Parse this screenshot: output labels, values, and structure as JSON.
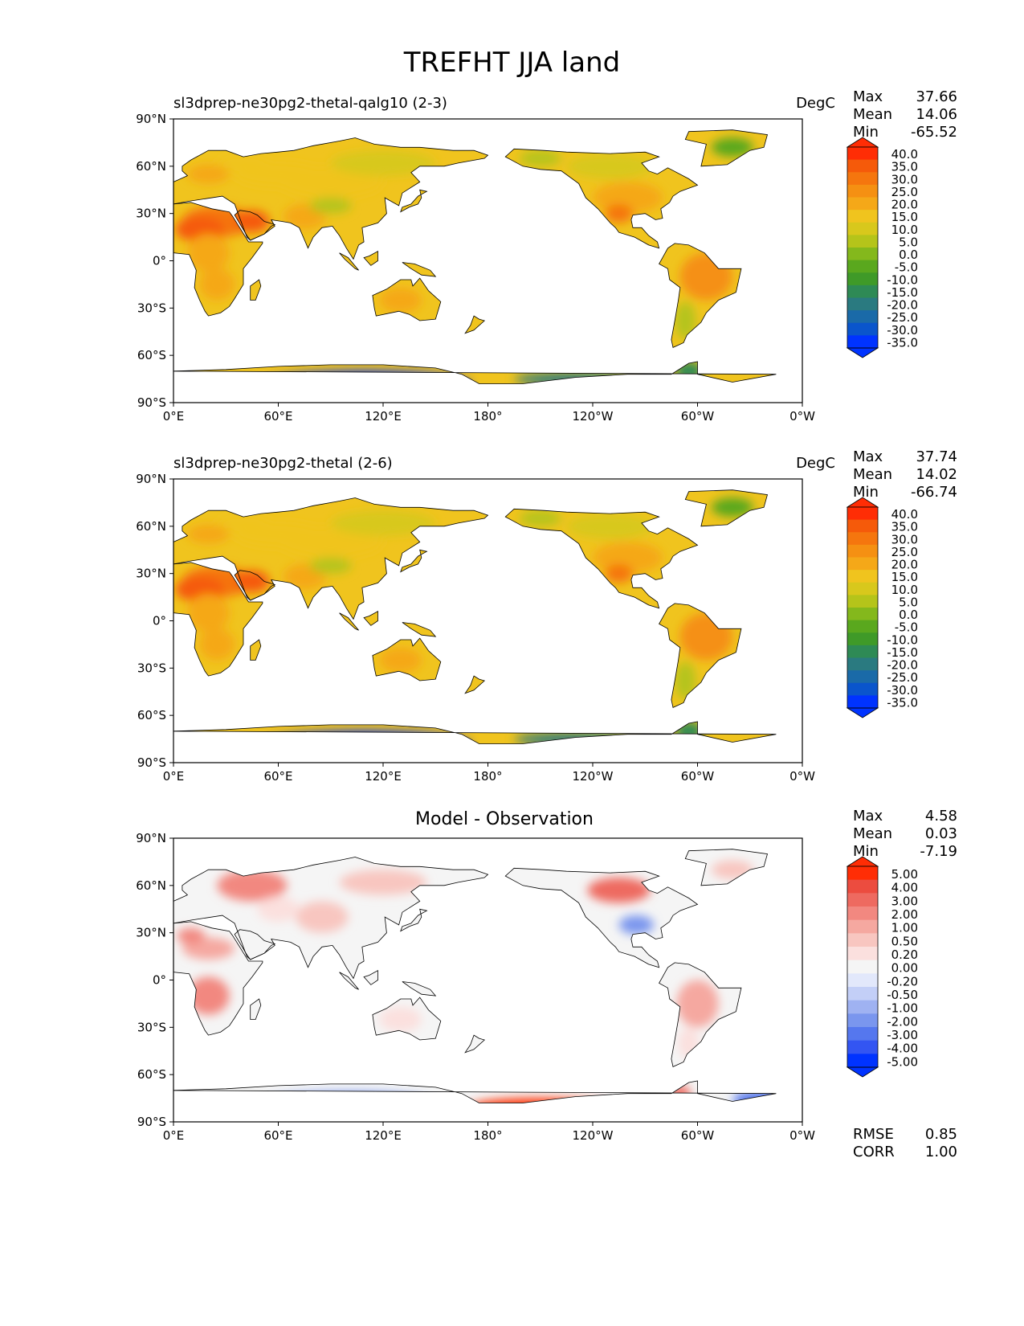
{
  "suptitle": "TREFHT JJA land",
  "panels": [
    {
      "left_title": "sl3dprep-ne30pg2-thetal-qalg10 (2-3)",
      "right_title": "DegC",
      "center_title": "",
      "stats": {
        "max_label": "Max",
        "max": "37.66",
        "mean_label": "Mean",
        "mean": "14.06",
        "min_label": "Min",
        "min": "-65.52"
      },
      "colorbar": [
        "40.0",
        "35.0",
        "30.0",
        "25.0",
        "20.0",
        "15.0",
        "10.0",
        "5.0",
        "0.0",
        "-5.0",
        "-10.0",
        "-15.0",
        "-20.0",
        "-25.0",
        "-30.0",
        "-35.0"
      ]
    },
    {
      "left_title": "sl3dprep-ne30pg2-thetal (2-6)",
      "right_title": "DegC",
      "center_title": "",
      "stats": {
        "max_label": "Max",
        "max": "37.74",
        "mean_label": "Mean",
        "mean": "14.02",
        "min_label": "Min",
        "min": "-66.74"
      },
      "colorbar": [
        "40.0",
        "35.0",
        "30.0",
        "25.0",
        "20.0",
        "15.0",
        "10.0",
        "5.0",
        "0.0",
        "-5.0",
        "-10.0",
        "-15.0",
        "-20.0",
        "-25.0",
        "-30.0",
        "-35.0"
      ]
    },
    {
      "left_title": "",
      "right_title": "",
      "center_title": "Model - Observation",
      "stats": {
        "max_label": "Max",
        "max": "4.58",
        "mean_label": "Mean",
        "mean": "0.03",
        "min_label": "Min",
        "min": "-7.19"
      },
      "colorbar": [
        "5.00",
        "4.00",
        "3.00",
        "2.00",
        "1.00",
        "0.50",
        "0.20",
        "0.00",
        "-0.20",
        "-0.50",
        "-1.00",
        "-2.00",
        "-3.00",
        "-4.00",
        "-5.00"
      ],
      "rmse_label": "RMSE",
      "rmse": "0.85",
      "corr_label": "CORR",
      "corr": "1.00"
    }
  ],
  "axes": {
    "lat_ticks": [
      "90°N",
      "60°N",
      "30°N",
      "0°",
      "30°S",
      "60°S",
      "90°S"
    ],
    "lon_ticks": [
      "0°E",
      "60°E",
      "120°E",
      "180°",
      "120°W",
      "60°W",
      "0°W"
    ]
  },
  "colors": {
    "temp_scale": [
      "#0033ff",
      "#0a55cc",
      "#1a6aa8",
      "#2a7a80",
      "#2e8a55",
      "#3f9a28",
      "#5aa81e",
      "#84b81c",
      "#b5c41a",
      "#d8c81c",
      "#f0c41e",
      "#f5a818",
      "#f59012",
      "#f5760e",
      "#f55a0a",
      "#ff2d05"
    ],
    "diff_scale": [
      "#0033ff",
      "#3355f2",
      "#5577ee",
      "#7a96ee",
      "#9fb2f2",
      "#c3cff7",
      "#e2e8fb",
      "#f5f5f5",
      "#fbe0de",
      "#f8c6c0",
      "#f5a8a0",
      "#f28880",
      "#ee6a60",
      "#ec4c3f",
      "#ff2d05"
    ]
  }
}
